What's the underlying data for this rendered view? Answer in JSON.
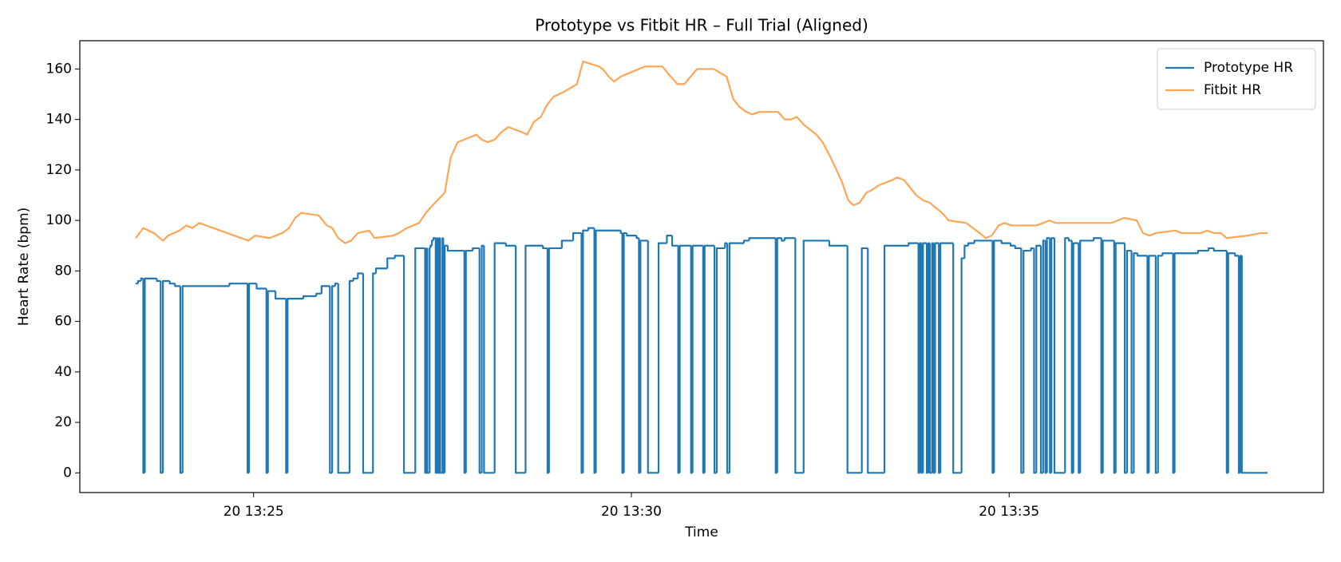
{
  "chart_data": {
    "type": "line",
    "title": "Prototype vs Fitbit HR – Full Trial (Aligned)",
    "x_label": "Time",
    "y_label": "Heart Rate (bpm)",
    "xlim": [
      22.7,
      39.16
    ],
    "ylim": [
      -7.8,
      171.2
    ],
    "xticks": [
      {
        "value": 25,
        "label": "20 13:25"
      },
      {
        "value": 30,
        "label": "20 13:30"
      },
      {
        "value": 35,
        "label": "20 13:35"
      }
    ],
    "yticks": [
      0,
      20,
      40,
      60,
      80,
      100,
      120,
      140,
      160
    ],
    "grid": false,
    "legend": "upper right",
    "series": [
      {
        "name": "Prototype HR",
        "color": "#1f77b4",
        "alpha": 1,
        "drawstyle": "steps-post",
        "x": [
          23.44,
          23.47,
          23.51,
          23.54,
          23.56,
          23.72,
          23.77,
          23.8,
          23.89,
          23.96,
          24.03,
          24.06,
          24.68,
          24.92,
          24.94,
          25.04,
          25.17,
          25.19,
          25.29,
          25.43,
          25.45,
          25.66,
          25.83,
          25.9,
          26.01,
          26.04,
          26.08,
          26.12,
          26.27,
          26.32,
          26.38,
          26.45,
          26.58,
          26.62,
          26.77,
          26.87,
          26.99,
          27.14,
          27.27,
          27.29,
          27.3,
          27.33,
          27.34,
          27.36,
          27.38,
          27.41,
          27.43,
          27.44,
          27.46,
          27.47,
          27.5,
          27.51,
          27.53,
          27.57,
          27.79,
          27.81,
          27.9,
          27.99,
          28.02,
          28.05,
          28.19,
          28.34,
          28.47,
          28.6,
          28.83,
          28.89,
          28.91,
          29.08,
          29.23,
          29.34,
          29.36,
          29.43,
          29.51,
          29.53,
          29.86,
          29.88,
          29.9,
          29.94,
          30.07,
          30.1,
          30.12,
          30.22,
          30.36,
          30.47,
          30.54,
          30.62,
          30.64,
          30.79,
          30.81,
          30.95,
          30.97,
          31.1,
          31.13,
          31.24,
          31.27,
          31.3,
          31.49,
          31.56,
          31.91,
          31.93,
          31.99,
          32.03,
          32.17,
          32.28,
          32.62,
          32.86,
          33.05,
          33.13,
          33.35,
          33.67,
          33.8,
          33.82,
          33.84,
          33.86,
          33.91,
          33.93,
          33.95,
          33.98,
          34.0,
          34.02,
          34.07,
          34.09,
          34.26,
          34.37,
          34.41,
          34.46,
          34.54,
          34.78,
          34.8,
          34.9,
          35.02,
          35.08,
          35.16,
          35.19,
          35.29,
          35.33,
          35.36,
          35.42,
          35.45,
          35.48,
          35.5,
          35.54,
          35.56,
          35.6,
          35.74,
          35.79,
          35.83,
          35.85,
          35.92,
          35.94,
          36.12,
          36.22,
          36.24,
          36.39,
          36.41,
          36.53,
          36.56,
          36.62,
          36.65,
          36.7,
          36.83,
          36.85,
          36.94,
          36.97,
          37.03,
          37.17,
          37.19,
          37.5,
          37.64,
          37.71,
          37.88,
          37.9,
          37.99,
          38.04,
          38.06,
          38.08,
          38.42
        ],
        "values": [
          75,
          76,
          77,
          0,
          77,
          76,
          0,
          76,
          75,
          74,
          0,
          74,
          75,
          0,
          75,
          73,
          0,
          72,
          69,
          0,
          69,
          70,
          71,
          74,
          0,
          74,
          75,
          0,
          76,
          77,
          79,
          0,
          79,
          81,
          85,
          86,
          0,
          89,
          0,
          89,
          0,
          89,
          90,
          92,
          93,
          0,
          93,
          0,
          93,
          0,
          93,
          0,
          90,
          88,
          0,
          88,
          89,
          0,
          90,
          0,
          91,
          90,
          0,
          90,
          89,
          0,
          89,
          92,
          95,
          0,
          96,
          97,
          0,
          96,
          95,
          0,
          95,
          94,
          93,
          0,
          92,
          0,
          91,
          94,
          90,
          0,
          90,
          0,
          90,
          0,
          90,
          0,
          89,
          91,
          0,
          91,
          92,
          93,
          0,
          93,
          92,
          93,
          0,
          92,
          90,
          0,
          89,
          0,
          90,
          91,
          0,
          91,
          0,
          91,
          0,
          91,
          0,
          91,
          0,
          91,
          0,
          91,
          0,
          85,
          90,
          91,
          92,
          0,
          92,
          91,
          90,
          89,
          0,
          88,
          89,
          0,
          90,
          0,
          92,
          0,
          93,
          0,
          93,
          0,
          93,
          92,
          0,
          91,
          0,
          92,
          93,
          0,
          92,
          0,
          91,
          0,
          88,
          0,
          87,
          86,
          0,
          86,
          0,
          86,
          87,
          0,
          87,
          88,
          89,
          88,
          0,
          87,
          86,
          0,
          86,
          0,
          0
        ]
      },
      {
        "name": "Fitbit HR",
        "color": "#ff7f0e",
        "alpha": 0.7,
        "drawstyle": "default",
        "x": [
          23.44,
          23.54,
          23.68,
          23.8,
          23.87,
          24.02,
          24.11,
          24.19,
          24.28,
          24.93,
          25.02,
          25.21,
          25.38,
          25.47,
          25.55,
          25.63,
          25.86,
          25.97,
          26.04,
          26.12,
          26.21,
          26.29,
          26.38,
          26.53,
          26.6,
          26.85,
          26.92,
          27.03,
          27.19,
          27.28,
          27.37,
          27.53,
          27.61,
          27.7,
          27.95,
          28.02,
          28.1,
          28.19,
          28.28,
          28.37,
          28.55,
          28.62,
          28.71,
          28.8,
          28.89,
          28.97,
          29.11,
          29.28,
          29.36,
          29.57,
          29.62,
          29.7,
          29.77,
          29.86,
          30.02,
          30.18,
          30.41,
          30.49,
          30.61,
          30.7,
          30.87,
          31.09,
          31.26,
          31.35,
          31.43,
          31.52,
          31.6,
          31.69,
          31.94,
          32.03,
          32.11,
          32.19,
          32.28,
          32.45,
          32.53,
          32.62,
          32.7,
          32.79,
          32.87,
          32.94,
          33.02,
          33.11,
          33.18,
          33.28,
          33.45,
          33.52,
          33.61,
          33.69,
          33.77,
          33.86,
          33.95,
          34.11,
          34.2,
          34.43,
          34.52,
          34.61,
          34.69,
          34.77,
          34.86,
          34.94,
          35.03,
          35.36,
          35.45,
          35.53,
          35.62,
          36.35,
          36.44,
          36.52,
          36.69,
          36.77,
          36.86,
          36.94,
          37.2,
          37.28,
          37.54,
          37.62,
          37.71,
          37.8,
          37.88,
          38.16,
          38.33,
          38.42
        ],
        "values": [
          93,
          97,
          95,
          92,
          94,
          96,
          98,
          97,
          99,
          92,
          94,
          93,
          95,
          97,
          101,
          103,
          102,
          98,
          97,
          93,
          91,
          92,
          95,
          96,
          93,
          94,
          95,
          97,
          99,
          103,
          106,
          111,
          125,
          131,
          134,
          132,
          131,
          132,
          135,
          137,
          135,
          134,
          139,
          141,
          146,
          149,
          151,
          154,
          163,
          161,
          160,
          157,
          155,
          157,
          159,
          161,
          161,
          158,
          154,
          154,
          160,
          160,
          157,
          148,
          145,
          143,
          142,
          143,
          143,
          140,
          140,
          141,
          138,
          134,
          131,
          126,
          121,
          115,
          108,
          106,
          107,
          111,
          112,
          114,
          116,
          117,
          116,
          113,
          110,
          108,
          107,
          103,
          100,
          99,
          97,
          95,
          93,
          94,
          98,
          99,
          98,
          98,
          99,
          100,
          99,
          99,
          100,
          101,
          100,
          95,
          94,
          95,
          96,
          95,
          95,
          96,
          95,
          95,
          93,
          94,
          95,
          95
        ]
      }
    ]
  }
}
